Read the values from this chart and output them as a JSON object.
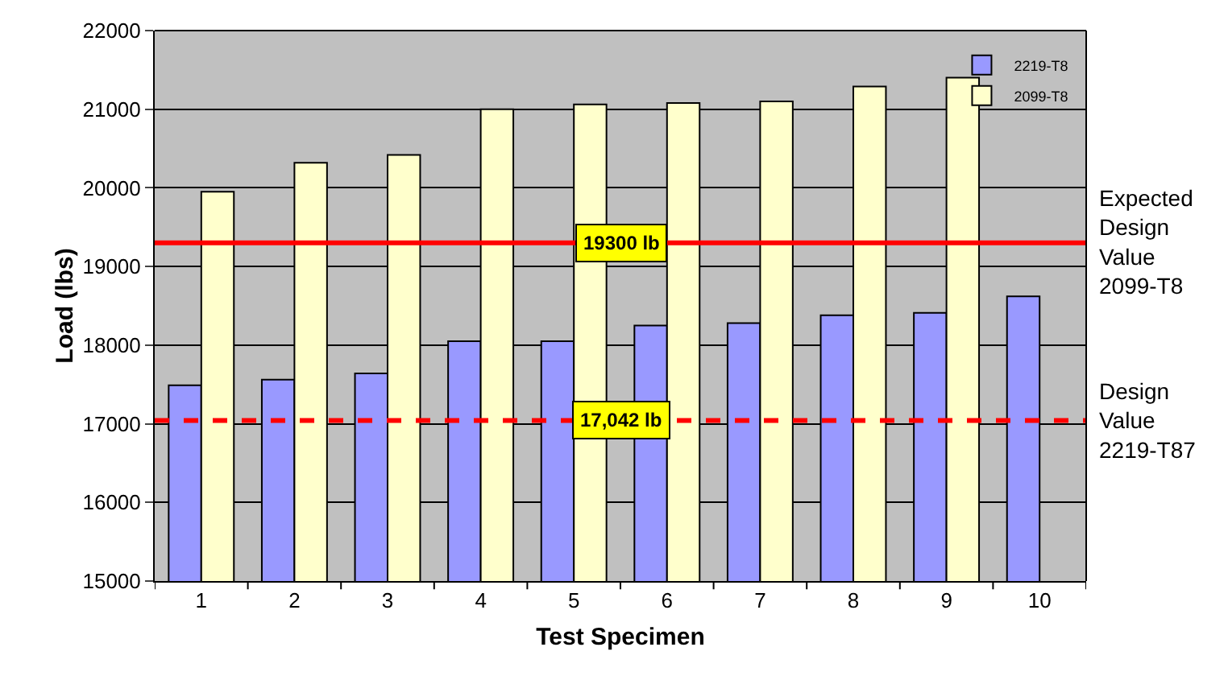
{
  "chart_data": {
    "type": "bar",
    "xlabel": "Test Specimen",
    "ylabel": "Load (lbs)",
    "categories": [
      "1",
      "2",
      "3",
      "4",
      "5",
      "6",
      "7",
      "8",
      "9",
      "10"
    ],
    "series": [
      {
        "name": "2219-T8",
        "color": "#9999ff",
        "values": [
          17490,
          17560,
          17640,
          18050,
          18050,
          18250,
          18280,
          18380,
          18410,
          18620
        ]
      },
      {
        "name": "2099-T8",
        "color": "#ffffcc",
        "values": [
          19950,
          20320,
          20420,
          21000,
          21060,
          21080,
          21100,
          21290,
          21400,
          null
        ]
      }
    ],
    "ylim": [
      15000,
      22000
    ],
    "yticks": [
      15000,
      16000,
      17000,
      18000,
      19000,
      20000,
      21000,
      22000
    ],
    "grid": "y",
    "legend": "top right",
    "ref_lines": [
      {
        "axis": "y",
        "value": 19300,
        "label": "19300 lb",
        "color": "#ff0000",
        "line_style": "solid"
      },
      {
        "axis": "y",
        "value": 17042,
        "label": "17,042 lb",
        "color": "#ff0000",
        "line_style": "dashed"
      }
    ],
    "annotations": [
      "Expected Design Value 2099-T8",
      "Design Value 2219-T87"
    ]
  }
}
